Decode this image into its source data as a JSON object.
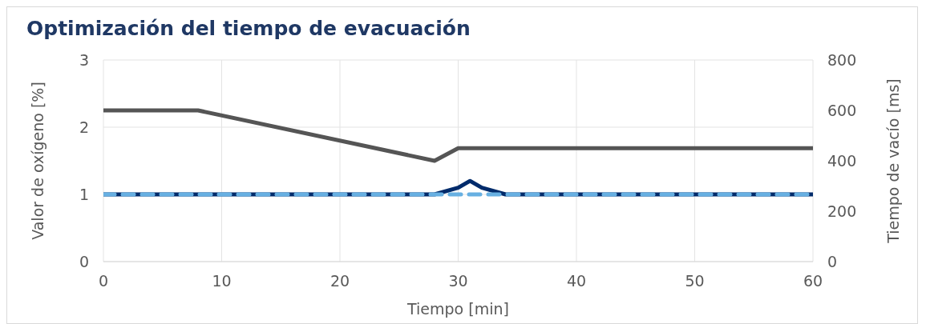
{
  "chart_data": {
    "type": "line",
    "title": "Optimización del tiempo de evacuación",
    "xlabel": "Tiempo [min]",
    "ylabel": "Valor de oxígeno [%]",
    "y2label": "Tiempo de vacío [ms]",
    "series": [
      {
        "color": "#555555",
        "axis": "y2",
        "x": [
          0,
          8,
          28,
          30,
          60
        ],
        "values": [
          600,
          600,
          400,
          450,
          450
        ]
      },
      {
        "color": "#002b6b",
        "x": [
          0,
          28,
          30,
          31,
          32,
          34,
          60
        ],
        "values": [
          1,
          1,
          1.1,
          1.2,
          1.1,
          1,
          1
        ]
      },
      {
        "color": "#67b0e2",
        "line_style": "dashed",
        "x": [
          0,
          60
        ],
        "values": [
          1,
          1
        ]
      }
    ],
    "xlim": [
      0,
      60
    ],
    "xticks": [
      0,
      10,
      20,
      30,
      40,
      50,
      60
    ],
    "ylim": [
      0,
      3
    ],
    "yticks": [
      0,
      1,
      2,
      3
    ],
    "y2lim": [
      0,
      800
    ],
    "y2ticks": [
      0,
      200,
      400,
      600,
      800
    ],
    "grid": true,
    "legend": false,
    "marker": "none"
  }
}
